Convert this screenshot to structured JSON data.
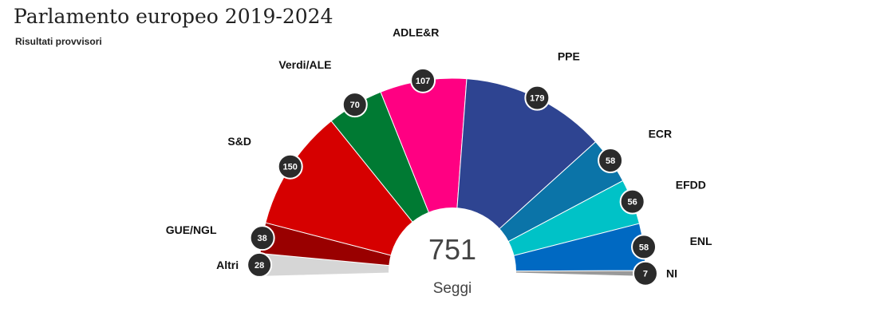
{
  "header": {
    "title": "Parlamento europeo 2019-2024",
    "subtitle": "Risultati provvisori"
  },
  "chart_data": {
    "type": "pie",
    "subtype": "parliament-hemicycle",
    "total": {
      "value": "751",
      "label": "Seggi"
    },
    "series": [
      {
        "name": "Altri",
        "value": 28,
        "color": "#d6d6d6"
      },
      {
        "name": "GUE/NGL",
        "value": 38,
        "color": "#990000"
      },
      {
        "name": "S&D",
        "value": 150,
        "color": "#d60000"
      },
      {
        "name": "Verdi/ALE",
        "value": 70,
        "color": "#007a33"
      },
      {
        "name": "ADLE&R",
        "value": 107,
        "color": "#ff0082"
      },
      {
        "name": "PPE",
        "value": 179,
        "color": "#2e4491"
      },
      {
        "name": "ECR",
        "value": 58,
        "color": "#0b74a8"
      },
      {
        "name": "EFDD",
        "value": 56,
        "color": "#00c2c7"
      },
      {
        "name": "ENL",
        "value": 58,
        "color": "#0069c2"
      },
      {
        "name": "NI",
        "value": 7,
        "color": "#9a9a9a"
      }
    ]
  }
}
